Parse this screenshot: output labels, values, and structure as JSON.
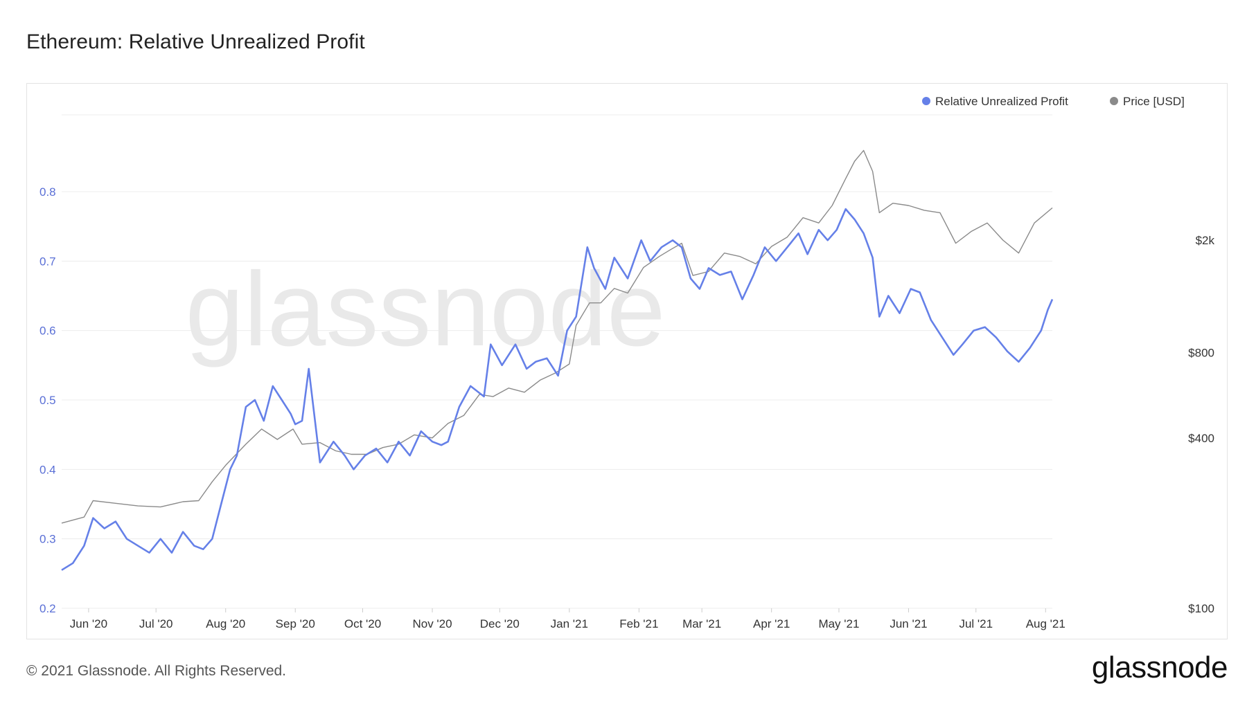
{
  "header": {
    "title": "Ethereum: Relative Unrealized Profit"
  },
  "footer": {
    "copyright": "© 2021 Glassnode. All Rights Reserved.",
    "logo": "glassnode"
  },
  "watermark": "glassnode",
  "colors": {
    "profit": "#6580e8",
    "price": "#8a8a8a",
    "grid": "#ececec",
    "left_axis_text": "#5a6fd6",
    "right_axis_text": "#333333"
  },
  "chart_data": {
    "type": "line",
    "title": "Ethereum: Relative Unrealized Profit",
    "legend": {
      "placement": "top-right",
      "entries": [
        "Relative Unrealized Profit",
        "Price [USD]"
      ]
    },
    "x_axis": {
      "range": [
        "2020-05-20",
        "2021-08-04"
      ],
      "tick_labels": [
        "Jun '20",
        "Jul '20",
        "Aug '20",
        "Sep '20",
        "Oct '20",
        "Nov '20",
        "Dec '20",
        "Jan '21",
        "Feb '21",
        "Mar '21",
        "Apr '21",
        "May '21",
        "Jun '21",
        "Jul '21",
        "Aug '21"
      ],
      "tick_dates": [
        "2020-06-01",
        "2020-07-01",
        "2020-08-01",
        "2020-09-01",
        "2020-10-01",
        "2020-11-01",
        "2020-12-01",
        "2021-01-01",
        "2021-02-01",
        "2021-03-01",
        "2021-04-01",
        "2021-05-01",
        "2021-06-01",
        "2021-07-01",
        "2021-08-01"
      ]
    },
    "y_axis_left": {
      "range": [
        0.2,
        0.8
      ],
      "ticks": [
        0.2,
        0.3,
        0.4,
        0.5,
        0.6,
        0.7,
        0.8
      ],
      "tick_labels": [
        "0.2",
        "0.3",
        "0.4",
        "0.5",
        "0.6",
        "0.7",
        "0.8"
      ]
    },
    "y_axis_right": {
      "scale": "log",
      "ticks": [
        100,
        400,
        800,
        2000
      ],
      "tick_labels": [
        "$100",
        "$400",
        "$800",
        "$2k"
      ]
    },
    "grid": true,
    "series": [
      {
        "name": "Relative Unrealized Profit",
        "axis": "left",
        "x": [
          "2020-05-20",
          "2020-05-25",
          "2020-05-30",
          "2020-06-03",
          "2020-06-08",
          "2020-06-13",
          "2020-06-18",
          "2020-06-23",
          "2020-06-28",
          "2020-07-03",
          "2020-07-08",
          "2020-07-13",
          "2020-07-18",
          "2020-07-22",
          "2020-07-26",
          "2020-07-30",
          "2020-08-03",
          "2020-08-06",
          "2020-08-10",
          "2020-08-14",
          "2020-08-18",
          "2020-08-22",
          "2020-08-26",
          "2020-08-30",
          "2020-09-01",
          "2020-09-04",
          "2020-09-07",
          "2020-09-12",
          "2020-09-18",
          "2020-09-23",
          "2020-09-27",
          "2020-10-02",
          "2020-10-07",
          "2020-10-12",
          "2020-10-17",
          "2020-10-22",
          "2020-10-27",
          "2020-11-01",
          "2020-11-05",
          "2020-11-08",
          "2020-11-13",
          "2020-11-18",
          "2020-11-24",
          "2020-11-27",
          "2020-12-02",
          "2020-12-08",
          "2020-12-13",
          "2020-12-17",
          "2020-12-22",
          "2020-12-27",
          "2020-12-31",
          "2021-01-04",
          "2021-01-09",
          "2021-01-12",
          "2021-01-17",
          "2021-01-21",
          "2021-01-27",
          "2021-02-02",
          "2021-02-06",
          "2021-02-11",
          "2021-02-16",
          "2021-02-20",
          "2021-02-24",
          "2021-02-28",
          "2021-03-04",
          "2021-03-09",
          "2021-03-14",
          "2021-03-19",
          "2021-03-24",
          "2021-03-29",
          "2021-04-03",
          "2021-04-08",
          "2021-04-13",
          "2021-04-17",
          "2021-04-22",
          "2021-04-26",
          "2021-04-30",
          "2021-05-04",
          "2021-05-08",
          "2021-05-12",
          "2021-05-16",
          "2021-05-19",
          "2021-05-23",
          "2021-05-28",
          "2021-06-02",
          "2021-06-06",
          "2021-06-11",
          "2021-06-16",
          "2021-06-21",
          "2021-06-25",
          "2021-06-30",
          "2021-07-05",
          "2021-07-10",
          "2021-07-15",
          "2021-07-20",
          "2021-07-25",
          "2021-07-30",
          "2021-08-02",
          "2021-08-04"
        ],
        "values": [
          0.255,
          0.265,
          0.29,
          0.33,
          0.315,
          0.325,
          0.3,
          0.29,
          0.28,
          0.3,
          0.28,
          0.31,
          0.29,
          0.285,
          0.3,
          0.35,
          0.4,
          0.42,
          0.49,
          0.5,
          0.47,
          0.52,
          0.5,
          0.48,
          0.465,
          0.47,
          0.545,
          0.41,
          0.44,
          0.42,
          0.4,
          0.42,
          0.43,
          0.41,
          0.44,
          0.42,
          0.455,
          0.44,
          0.435,
          0.44,
          0.49,
          0.52,
          0.505,
          0.58,
          0.55,
          0.58,
          0.545,
          0.555,
          0.56,
          0.535,
          0.6,
          0.62,
          0.72,
          0.69,
          0.66,
          0.705,
          0.675,
          0.73,
          0.7,
          0.72,
          0.73,
          0.72,
          0.675,
          0.66,
          0.69,
          0.68,
          0.685,
          0.645,
          0.68,
          0.72,
          0.7,
          0.72,
          0.74,
          0.71,
          0.745,
          0.73,
          0.745,
          0.775,
          0.76,
          0.74,
          0.705,
          0.62,
          0.65,
          0.625,
          0.66,
          0.655,
          0.615,
          0.59,
          0.565,
          0.58,
          0.6,
          0.605,
          0.59,
          0.57,
          0.555,
          0.575,
          0.6,
          0.63,
          0.645
        ]
      },
      {
        "name": "Price [USD]",
        "axis": "right",
        "x": [
          "2020-05-20",
          "2020-05-30",
          "2020-06-03",
          "2020-06-13",
          "2020-06-23",
          "2020-07-03",
          "2020-07-13",
          "2020-07-20",
          "2020-07-26",
          "2020-08-01",
          "2020-08-10",
          "2020-08-17",
          "2020-08-24",
          "2020-08-31",
          "2020-09-04",
          "2020-09-12",
          "2020-09-19",
          "2020-09-26",
          "2020-10-03",
          "2020-10-10",
          "2020-10-17",
          "2020-10-24",
          "2020-11-01",
          "2020-11-08",
          "2020-11-15",
          "2020-11-22",
          "2020-11-28",
          "2020-12-05",
          "2020-12-12",
          "2020-12-19",
          "2020-12-26",
          "2021-01-01",
          "2021-01-04",
          "2021-01-10",
          "2021-01-15",
          "2021-01-21",
          "2021-01-27",
          "2021-02-03",
          "2021-02-10",
          "2021-02-15",
          "2021-02-20",
          "2021-02-25",
          "2021-03-04",
          "2021-03-11",
          "2021-03-18",
          "2021-03-25",
          "2021-04-01",
          "2021-04-08",
          "2021-04-15",
          "2021-04-22",
          "2021-04-28",
          "2021-05-04",
          "2021-05-08",
          "2021-05-12",
          "2021-05-16",
          "2021-05-19",
          "2021-05-25",
          "2021-06-01",
          "2021-06-08",
          "2021-06-15",
          "2021-06-22",
          "2021-06-29",
          "2021-07-06",
          "2021-07-13",
          "2021-07-20",
          "2021-07-27",
          "2021-08-04"
        ],
        "values": [
          200,
          210,
          240,
          235,
          230,
          228,
          238,
          240,
          280,
          320,
          380,
          430,
          395,
          430,
          380,
          385,
          360,
          350,
          350,
          370,
          380,
          410,
          400,
          450,
          480,
          570,
          560,
          600,
          580,
          640,
          680,
          730,
          1000,
          1200,
          1200,
          1350,
          1300,
          1600,
          1750,
          1850,
          1950,
          1500,
          1550,
          1800,
          1750,
          1650,
          1900,
          2050,
          2400,
          2300,
          2650,
          3300,
          3800,
          4150,
          3500,
          2500,
          2700,
          2650,
          2550,
          2500,
          1950,
          2150,
          2300,
          2000,
          1800,
          2300,
          2600
        ]
      }
    ]
  }
}
